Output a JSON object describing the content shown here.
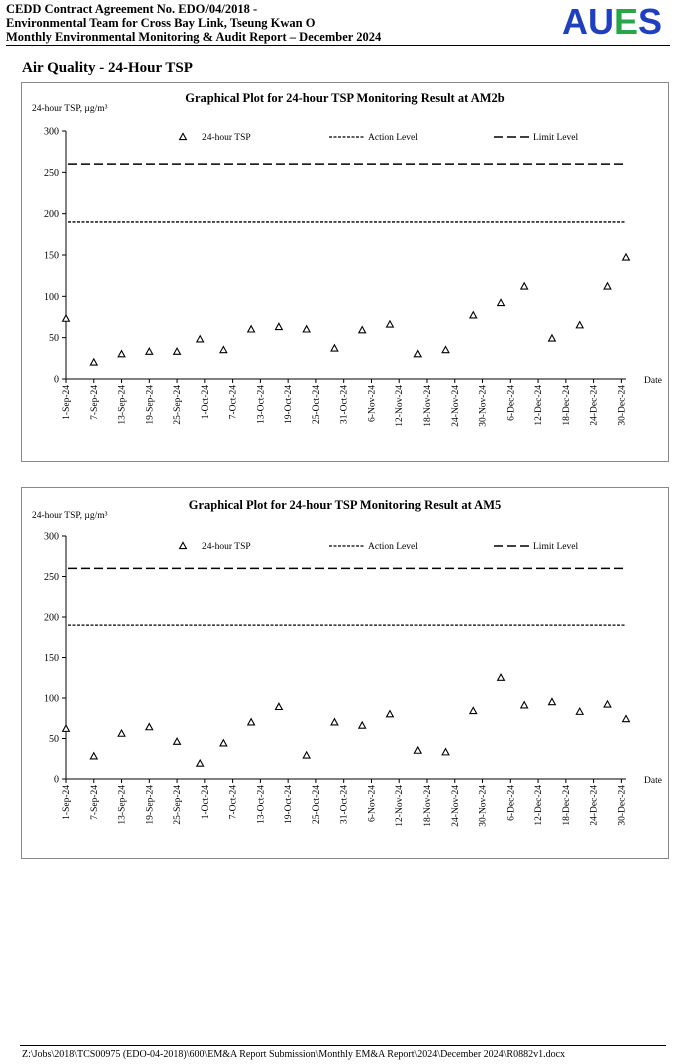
{
  "header": {
    "line1": "CEDD Contract Agreement No. EDO/04/2018 -",
    "line2": "Environmental Team for Cross Bay Link, Tseung Kwan O",
    "line3": "Monthly Environmental Monitoring & Audit Report – December 2024",
    "logo": {
      "letters": [
        "A",
        "U",
        "E",
        "S"
      ],
      "colors": [
        "#1f3fbf",
        "#1f3fbf",
        "#2aa64a",
        "#1f3fbf"
      ]
    }
  },
  "section_title": "Air Quality - 24-Hour TSP",
  "footer": "Z:\\Jobs\\2018\\TCS00975 (EDO-04-2018)\\600\\EM&A Report Submission\\Monthly EM&A Report\\2024\\December 2024\\R0882v1.docx",
  "chart_data": [
    {
      "type": "scatter",
      "title": "Graphical Plot for 24-hour TSP Monitoring Result at AM2b",
      "ylabel": "24-hour TSP, µg/m³",
      "xlabel": "Date",
      "ylim": [
        0,
        300
      ],
      "yticks": [
        0,
        50,
        100,
        150,
        200,
        250,
        300
      ],
      "xlim": [
        "2024-09-01",
        "2024-12-31"
      ],
      "xticks": [
        "2024-09-01",
        "2024-09-07",
        "2024-09-13",
        "2024-09-19",
        "2024-09-25",
        "2024-10-01",
        "2024-10-07",
        "2024-10-13",
        "2024-10-19",
        "2024-10-25",
        "2024-10-31",
        "2024-11-06",
        "2024-11-12",
        "2024-11-18",
        "2024-11-24",
        "2024-11-30",
        "2024-12-06",
        "2024-12-12",
        "2024-12-18",
        "2024-12-24",
        "2024-12-30"
      ],
      "xtick_labels": [
        "1-Sep-24",
        "7-Sep-24",
        "13-Sep-24",
        "19-Sep-24",
        "25-Sep-24",
        "1-Oct-24",
        "7-Oct-24",
        "13-Oct-24",
        "19-Oct-24",
        "25-Oct-24",
        "31-Oct-24",
        "6-Nov-24",
        "12-Nov-24",
        "18-Nov-24",
        "24-Nov-24",
        "30-Nov-24",
        "6-Dec-24",
        "12-Dec-24",
        "18-Dec-24",
        "24-Dec-24",
        "30-Dec-24"
      ],
      "legend": {
        "placement": "top",
        "items": [
          "24-hour TSP",
          "Action Level",
          "Limit Level"
        ]
      },
      "action_level": 190,
      "limit_level": 260,
      "grid": false,
      "series": [
        {
          "name": "24-hour TSP",
          "marker": "triangle",
          "points": [
            {
              "x": "2024-09-01",
              "y": 73
            },
            {
              "x": "2024-09-07",
              "y": 20
            },
            {
              "x": "2024-09-13",
              "y": 30
            },
            {
              "x": "2024-09-19",
              "y": 33
            },
            {
              "x": "2024-09-25",
              "y": 33
            },
            {
              "x": "2024-09-30",
              "y": 48
            },
            {
              "x": "2024-10-05",
              "y": 35
            },
            {
              "x": "2024-10-11",
              "y": 60
            },
            {
              "x": "2024-10-17",
              "y": 63
            },
            {
              "x": "2024-10-23",
              "y": 60
            },
            {
              "x": "2024-10-29",
              "y": 37
            },
            {
              "x": "2024-11-04",
              "y": 59
            },
            {
              "x": "2024-11-10",
              "y": 66
            },
            {
              "x": "2024-11-16",
              "y": 30
            },
            {
              "x": "2024-11-22",
              "y": 35
            },
            {
              "x": "2024-11-28",
              "y": 77
            },
            {
              "x": "2024-12-04",
              "y": 92
            },
            {
              "x": "2024-12-09",
              "y": 112
            },
            {
              "x": "2024-12-15",
              "y": 49
            },
            {
              "x": "2024-12-21",
              "y": 65
            },
            {
              "x": "2024-12-27",
              "y": 112
            },
            {
              "x": "2024-12-31",
              "y": 147
            }
          ]
        }
      ]
    },
    {
      "type": "scatter",
      "title": "Graphical Plot for 24-hour TSP Monitoring Result at AM5",
      "ylabel": "24-hour TSP, µg/m³",
      "xlabel": "Date",
      "ylim": [
        0,
        300
      ],
      "yticks": [
        0,
        50,
        100,
        150,
        200,
        250,
        300
      ],
      "xlim": [
        "2024-09-01",
        "2024-12-31"
      ],
      "xticks": [
        "2024-09-01",
        "2024-09-07",
        "2024-09-13",
        "2024-09-19",
        "2024-09-25",
        "2024-10-01",
        "2024-10-07",
        "2024-10-13",
        "2024-10-19",
        "2024-10-25",
        "2024-10-31",
        "2024-11-06",
        "2024-11-12",
        "2024-11-18",
        "2024-11-24",
        "2024-11-30",
        "2024-12-06",
        "2024-12-12",
        "2024-12-18",
        "2024-12-24",
        "2024-12-30"
      ],
      "xtick_labels": [
        "1-Sep-24",
        "7-Sep-24",
        "13-Sep-24",
        "19-Sep-24",
        "25-Sep-24",
        "1-Oct-24",
        "7-Oct-24",
        "13-Oct-24",
        "19-Oct-24",
        "25-Oct-24",
        "31-Oct-24",
        "6-Nov-24",
        "12-Nov-24",
        "18-Nov-24",
        "24-Nov-24",
        "30-Nov-24",
        "6-Dec-24",
        "12-Dec-24",
        "18-Dec-24",
        "24-Dec-24",
        "30-Dec-24"
      ],
      "legend": {
        "placement": "top",
        "items": [
          "24-hour TSP",
          "Action Level",
          "Limit Level"
        ]
      },
      "action_level": 190,
      "limit_level": 260,
      "grid": false,
      "series": [
        {
          "name": "24-hour TSP",
          "marker": "triangle",
          "points": [
            {
              "x": "2024-09-01",
              "y": 62
            },
            {
              "x": "2024-09-07",
              "y": 28
            },
            {
              "x": "2024-09-13",
              "y": 56
            },
            {
              "x": "2024-09-19",
              "y": 64
            },
            {
              "x": "2024-09-25",
              "y": 46
            },
            {
              "x": "2024-09-30",
              "y": 19
            },
            {
              "x": "2024-10-05",
              "y": 44
            },
            {
              "x": "2024-10-11",
              "y": 70
            },
            {
              "x": "2024-10-17",
              "y": 89
            },
            {
              "x": "2024-10-23",
              "y": 29
            },
            {
              "x": "2024-10-29",
              "y": 70
            },
            {
              "x": "2024-11-04",
              "y": 66
            },
            {
              "x": "2024-11-10",
              "y": 80
            },
            {
              "x": "2024-11-16",
              "y": 35
            },
            {
              "x": "2024-11-22",
              "y": 33
            },
            {
              "x": "2024-11-28",
              "y": 84
            },
            {
              "x": "2024-12-04",
              "y": 125
            },
            {
              "x": "2024-12-09",
              "y": 91
            },
            {
              "x": "2024-12-15",
              "y": 95
            },
            {
              "x": "2024-12-21",
              "y": 83
            },
            {
              "x": "2024-12-27",
              "y": 92
            },
            {
              "x": "2024-12-31",
              "y": 74
            }
          ]
        }
      ]
    }
  ]
}
